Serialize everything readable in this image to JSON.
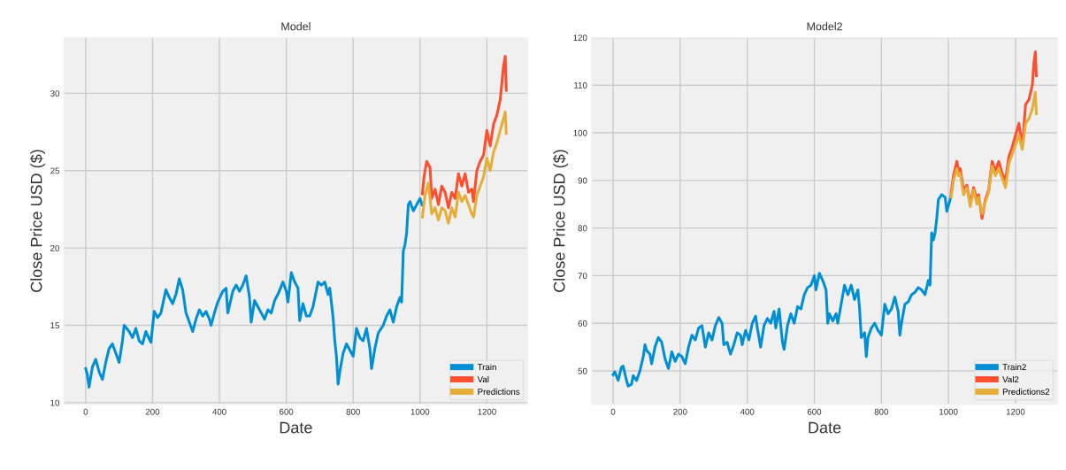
{
  "chart_data": [
    {
      "type": "line",
      "title": "Model",
      "xlabel": "Date",
      "ylabel": "Close Price USD ($)",
      "xlim": [
        -65,
        1322
      ],
      "ylim": [
        9.9,
        33.6
      ],
      "xticks": [
        0,
        200,
        400,
        600,
        800,
        1000,
        1200
      ],
      "yticks": [
        10,
        15,
        20,
        25,
        30
      ],
      "grid": true,
      "legend": "bottom right",
      "series": [
        {
          "name": "Train",
          "color": "#008fd5",
          "x": [
            0,
            5,
            10,
            20,
            30,
            40,
            50,
            60,
            70,
            80,
            90,
            100,
            110,
            115,
            130,
            140,
            150,
            160,
            170,
            180,
            195,
            205,
            215,
            225,
            235,
            240,
            250,
            260,
            270,
            280,
            290,
            300,
            310,
            320,
            330,
            340,
            350,
            360,
            370,
            375,
            385,
            395,
            410,
            420,
            425,
            440,
            450,
            460,
            470,
            480,
            490,
            495,
            505,
            515,
            525,
            535,
            545,
            555,
            565,
            575,
            590,
            600,
            605,
            615,
            625,
            635,
            640,
            650,
            660,
            670,
            680,
            695,
            705,
            715,
            725,
            730,
            740,
            745,
            750,
            755,
            760,
            770,
            780,
            790,
            800,
            810,
            820,
            830,
            840,
            850,
            855,
            865,
            875,
            890,
            900,
            910,
            920,
            930,
            940,
            945,
            950,
            955,
            960,
            965,
            970,
            980,
            990,
            1000,
            1006
          ],
          "values": [
            12.2,
            11.8,
            11.0,
            12.3,
            12.8,
            12.0,
            11.5,
            12.6,
            13.5,
            13.8,
            13.2,
            12.6,
            14.0,
            15.0,
            14.6,
            14.2,
            14.8,
            14.0,
            13.8,
            14.6,
            13.9,
            15.9,
            15.5,
            15.8,
            16.8,
            17.3,
            16.8,
            16.4,
            17.0,
            18.0,
            17.3,
            15.8,
            15.2,
            14.6,
            15.4,
            16.0,
            15.6,
            15.9,
            15.4,
            15.0,
            15.8,
            16.5,
            17.2,
            17.4,
            15.8,
            17.2,
            17.6,
            17.2,
            17.6,
            18.2,
            16.8,
            15.2,
            16.6,
            16.2,
            15.8,
            15.4,
            16.0,
            15.8,
            16.6,
            17.0,
            17.8,
            17.2,
            16.5,
            18.4,
            17.8,
            17.4,
            15.3,
            16.4,
            15.6,
            15.6,
            16.2,
            17.8,
            17.6,
            17.8,
            17.0,
            17.4,
            15.5,
            14.0,
            13.0,
            11.2,
            12.0,
            13.2,
            13.8,
            13.4,
            13.0,
            14.8,
            14.2,
            14.0,
            14.8,
            13.5,
            12.2,
            13.5,
            14.5,
            15.0,
            15.6,
            16.0,
            15.2,
            16.2,
            16.8,
            16.5,
            19.8,
            20.2,
            21.0,
            22.8,
            23.0,
            22.4,
            22.8,
            23.2,
            22.8
          ]
        },
        {
          "name": "Val",
          "color": "#fc4f30",
          "x": [
            1007,
            1012,
            1020,
            1030,
            1035,
            1045,
            1055,
            1065,
            1075,
            1085,
            1095,
            1105,
            1115,
            1125,
            1135,
            1145,
            1155,
            1160,
            1170,
            1180,
            1190,
            1200,
            1210,
            1220,
            1230,
            1240,
            1250,
            1255,
            1258
          ],
          "values": [
            23.5,
            24.6,
            25.6,
            25.2,
            23.2,
            23.8,
            22.8,
            24.0,
            23.6,
            22.6,
            23.6,
            23.2,
            24.8,
            24.0,
            24.8,
            23.6,
            23.8,
            23.0,
            25.0,
            25.6,
            26.0,
            27.6,
            26.6,
            28.0,
            28.6,
            29.6,
            31.8,
            32.4,
            30.2
          ]
        },
        {
          "name": "Predictions",
          "color": "#e5ae38",
          "x": [
            1007,
            1015,
            1025,
            1035,
            1045,
            1055,
            1065,
            1075,
            1085,
            1095,
            1105,
            1115,
            1125,
            1135,
            1145,
            1155,
            1160,
            1170,
            1180,
            1190,
            1200,
            1210,
            1220,
            1230,
            1240,
            1250,
            1255,
            1258
          ],
          "values": [
            22.0,
            23.4,
            24.2,
            22.2,
            22.6,
            21.8,
            22.6,
            22.4,
            21.6,
            22.6,
            22.0,
            23.6,
            23.0,
            23.4,
            22.8,
            22.2,
            22.0,
            23.4,
            24.0,
            24.6,
            25.8,
            25.0,
            26.2,
            26.8,
            27.6,
            28.4,
            28.8,
            27.4
          ]
        }
      ]
    },
    {
      "type": "line",
      "title": "Model2",
      "xlabel": "Date",
      "ylabel": "Close Price USD ($)",
      "xlim": [
        -64,
        1325
      ],
      "ylim": [
        43,
        120
      ],
      "xticks": [
        0,
        200,
        400,
        600,
        800,
        1000,
        1200
      ],
      "yticks": [
        50,
        60,
        70,
        80,
        90,
        100,
        110,
        120
      ],
      "grid": true,
      "legend": "bottom right",
      "series": [
        {
          "name": "Train2",
          "color": "#008fd5",
          "x": [
            0,
            5,
            15,
            25,
            30,
            40,
            45,
            55,
            60,
            70,
            80,
            90,
            95,
            100,
            110,
            115,
            125,
            135,
            145,
            155,
            165,
            175,
            185,
            195,
            205,
            215,
            225,
            235,
            245,
            255,
            265,
            275,
            285,
            295,
            305,
            315,
            325,
            330,
            340,
            350,
            360,
            370,
            380,
            385,
            395,
            405,
            415,
            425,
            430,
            440,
            450,
            460,
            470,
            480,
            485,
            495,
            505,
            510,
            520,
            530,
            540,
            550,
            560,
            570,
            580,
            590,
            600,
            605,
            615,
            625,
            635,
            640,
            645,
            655,
            665,
            670,
            680,
            690,
            700,
            710,
            720,
            730,
            735,
            740,
            750,
            755,
            760,
            770,
            780,
            790,
            800,
            810,
            820,
            830,
            840,
            850,
            855,
            860,
            870,
            880,
            890,
            900,
            910,
            920,
            930,
            940,
            945,
            950,
            955,
            960,
            965,
            970,
            980,
            990,
            995,
            1005,
            1008
          ],
          "values": [
            49.2,
            49.8,
            48.0,
            50.8,
            51.0,
            48.0,
            46.8,
            47.2,
            49.0,
            48.0,
            50.0,
            53.0,
            55.5,
            54.3,
            53.5,
            51.5,
            55.0,
            57.0,
            56.0,
            52.5,
            50.5,
            54.0,
            52.0,
            53.5,
            53.0,
            51.5,
            55.0,
            57.5,
            56.5,
            59.0,
            59.5,
            55.0,
            58.0,
            56.5,
            59.5,
            61.2,
            60.0,
            55.5,
            56.0,
            53.5,
            55.5,
            58.0,
            57.5,
            55.5,
            58.5,
            56.5,
            60.0,
            61.5,
            59.0,
            55.0,
            59.5,
            61.0,
            60.0,
            62.5,
            59.0,
            63.0,
            56.0,
            54.5,
            59.5,
            62.0,
            60.0,
            63.5,
            63.0,
            66.0,
            67.5,
            68.0,
            70.0,
            67.0,
            70.5,
            69.0,
            67.0,
            60.0,
            62.0,
            60.5,
            62.0,
            60.0,
            64.0,
            68.0,
            66.0,
            68.0,
            65.0,
            67.0,
            63.0,
            57.0,
            58.0,
            53.0,
            57.0,
            59.0,
            60.0,
            58.5,
            57.5,
            64.0,
            62.0,
            63.0,
            65.5,
            62.5,
            57.5,
            60.0,
            64.0,
            64.5,
            66.0,
            66.5,
            67.5,
            67.0,
            66.0,
            69.0,
            68.0,
            79.0,
            77.5,
            79.0,
            82.0,
            86.0,
            87.0,
            86.5,
            83.5,
            86.0,
            87.0
          ]
        },
        {
          "name": "Val2",
          "color": "#fc4f30",
          "x": [
            1008,
            1015,
            1025,
            1030,
            1035,
            1045,
            1055,
            1065,
            1075,
            1085,
            1090,
            1100,
            1110,
            1120,
            1130,
            1140,
            1150,
            1160,
            1170,
            1180,
            1190,
            1200,
            1210,
            1220,
            1230,
            1240,
            1250,
            1255,
            1259,
            1262
          ],
          "values": [
            87.5,
            91.0,
            94.0,
            92.0,
            92.5,
            88.0,
            89.0,
            85.0,
            88.5,
            86.0,
            87.0,
            82.0,
            86.0,
            88.0,
            94.0,
            92.0,
            94.0,
            91.5,
            90.0,
            95.0,
            97.0,
            99.5,
            102.0,
            97.0,
            106.0,
            107.0,
            110.0,
            115.0,
            117.0,
            112.0
          ]
        },
        {
          "name": "Predictions2",
          "color": "#e5ae38",
          "x": [
            1008,
            1015,
            1025,
            1030,
            1035,
            1045,
            1055,
            1065,
            1075,
            1085,
            1090,
            1100,
            1110,
            1120,
            1130,
            1140,
            1150,
            1160,
            1170,
            1180,
            1190,
            1200,
            1210,
            1220,
            1230,
            1240,
            1250,
            1255,
            1259,
            1262
          ],
          "values": [
            86.5,
            90.0,
            92.5,
            91.0,
            91.5,
            87.0,
            88.5,
            84.5,
            88.0,
            85.0,
            86.5,
            83.0,
            85.5,
            87.5,
            93.0,
            91.0,
            92.5,
            90.5,
            88.5,
            93.5,
            95.5,
            97.5,
            99.5,
            96.5,
            102.0,
            103.0,
            105.0,
            107.0,
            108.5,
            104.0
          ]
        }
      ]
    }
  ]
}
